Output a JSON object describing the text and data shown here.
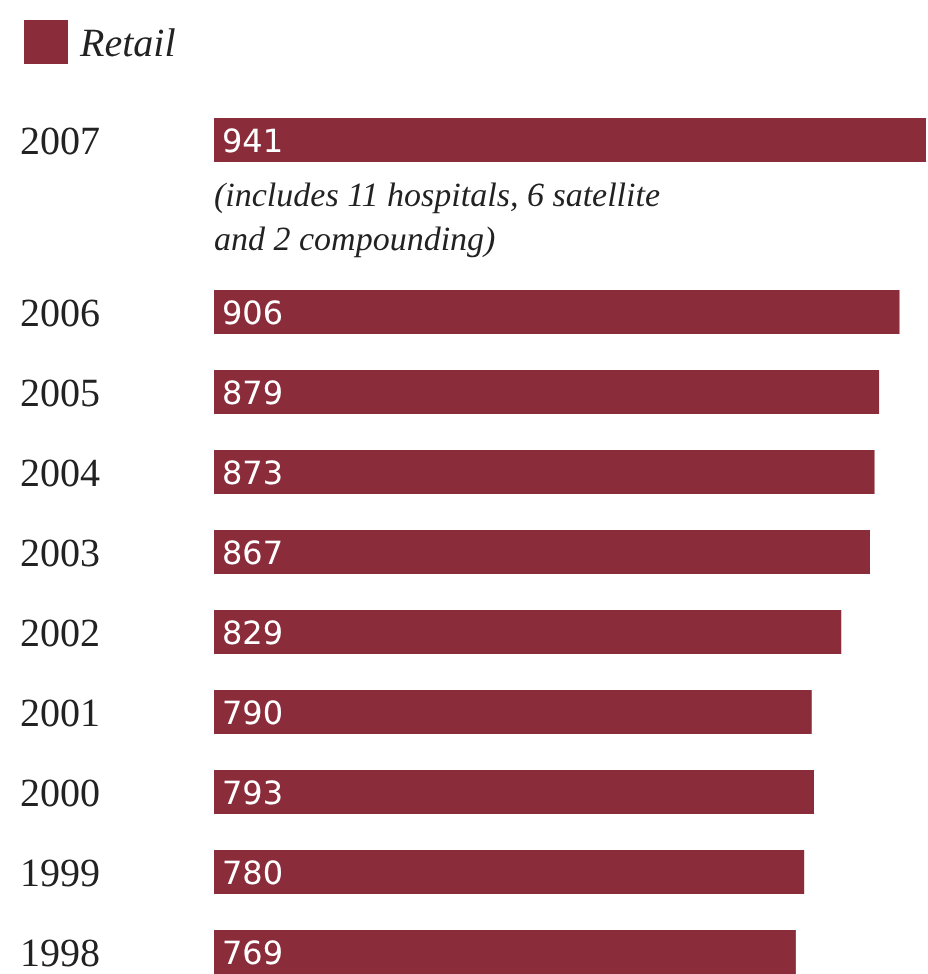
{
  "chart_data": {
    "type": "bar",
    "orientation": "horizontal",
    "categories": [
      "2007",
      "2006",
      "2005",
      "2004",
      "2003",
      "2002",
      "2001",
      "2000",
      "1999",
      "1998"
    ],
    "series": [
      {
        "name": "Retail",
        "color": "#8b2c3a",
        "values": [
          941,
          906,
          879,
          873,
          867,
          829,
          790,
          793,
          780,
          769
        ]
      }
    ],
    "data_labels": true,
    "legend": "top left",
    "annotations": [
      "(includes 11 hospitals, 6 satellite and 2 compounding)"
    ]
  }
}
